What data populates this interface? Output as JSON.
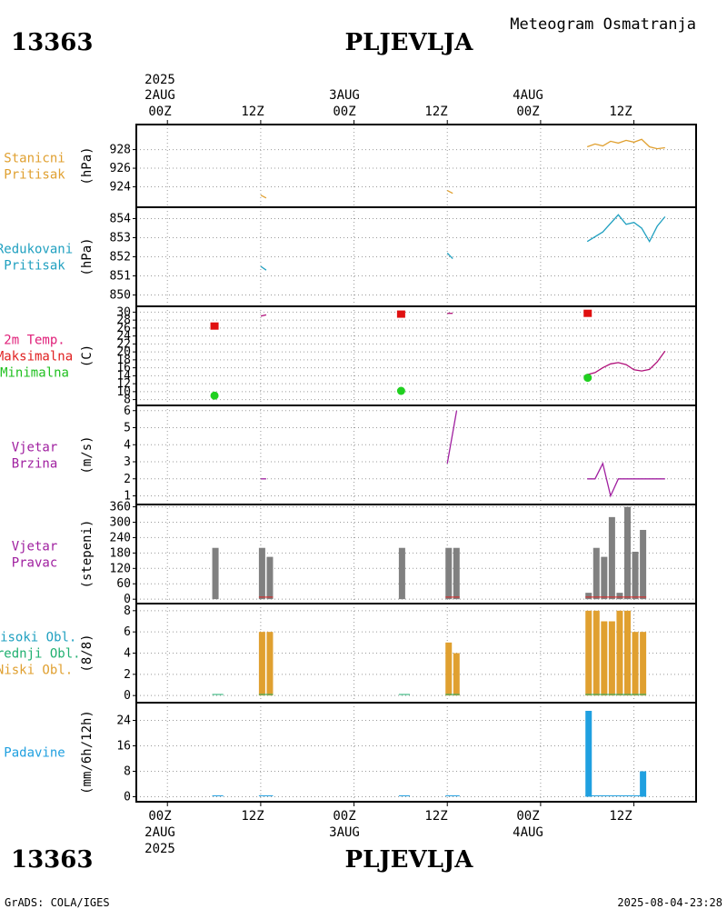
{
  "header": {
    "station_id": "13363",
    "station_name": "PLJEVLJA",
    "title": "Meteogram Osmatranja"
  },
  "footer": {
    "credit": "GrADS: COLA/IGES",
    "timestamp": "2025-08-04-23:28"
  },
  "time_axis": {
    "year": "2025",
    "top": [
      {
        "date": "2AUG",
        "hour": "00Z"
      },
      {
        "date": "",
        "hour": "12Z"
      },
      {
        "date": "3AUG",
        "hour": "00Z"
      },
      {
        "date": "",
        "hour": "12Z"
      },
      {
        "date": "4AUG",
        "hour": "00Z"
      },
      {
        "date": "",
        "hour": "12Z"
      }
    ]
  },
  "chart_data": [
    {
      "type": "line",
      "id": "station-pressure",
      "title_lines": [
        {
          "text": "Stanicni",
          "color": "#e0a030"
        },
        {
          "text": "Pritisak",
          "color": "#e0a030"
        }
      ],
      "ylabel": "(hPa)",
      "ylim": [
        922,
        930.5
      ],
      "yticks": [
        924,
        926,
        928
      ],
      "series": [
        {
          "color": "#e0a030",
          "points": [
            [
              12,
              923.1
            ],
            [
              12.7,
              922.8
            ]
          ]
        },
        {
          "color": "#e0a030",
          "points": [
            [
              36,
              923.6
            ],
            [
              36.7,
              923.3
            ]
          ]
        },
        {
          "color": "#e0a030",
          "points": [
            [
              54,
              928.3
            ],
            [
              55,
              928.6
            ],
            [
              56,
              928.4
            ],
            [
              57,
              928.9
            ],
            [
              58,
              928.7
            ],
            [
              59,
              929.0
            ],
            [
              60,
              928.8
            ],
            [
              61,
              929.1
            ],
            [
              62,
              928.3
            ],
            [
              63,
              928.1
            ],
            [
              64,
              928.2
            ]
          ]
        }
      ]
    },
    {
      "type": "line",
      "id": "reduced-pressure",
      "title_lines": [
        {
          "text": "Redukovani",
          "color": "#20a0c0"
        },
        {
          "text": "Pritisak",
          "color": "#20a0c0"
        }
      ],
      "ylabel": "(hPa)",
      "ylim": [
        849.5,
        854.5
      ],
      "yticks": [
        850,
        851,
        852,
        853,
        854
      ],
      "series": [
        {
          "color": "#20a0c0",
          "points": [
            [
              12,
              851.5
            ],
            [
              12.7,
              851.3
            ]
          ]
        },
        {
          "color": "#20a0c0",
          "points": [
            [
              36,
              852.2
            ],
            [
              36.7,
              851.9
            ]
          ]
        },
        {
          "color": "#20a0c0",
          "points": [
            [
              54,
              852.8
            ],
            [
              56,
              853.3
            ],
            [
              58,
              854.2
            ],
            [
              59,
              853.7
            ],
            [
              60,
              853.8
            ],
            [
              61,
              853.5
            ],
            [
              62,
              852.8
            ],
            [
              63,
              853.6
            ],
            [
              64,
              854.1
            ]
          ]
        }
      ]
    },
    {
      "type": "line",
      "id": "temperature",
      "title_lines": [
        {
          "text": "2m Temp.",
          "color": "#e0207a"
        },
        {
          "text": "Maksimalna",
          "color": "#e02020"
        },
        {
          "text": "Minimalna",
          "color": "#20c020"
        }
      ],
      "ylabel": "(C)",
      "ylim": [
        7,
        31
      ],
      "yticks": [
        8,
        10,
        12,
        14,
        16,
        18,
        20,
        22,
        24,
        26,
        28,
        30
      ],
      "series": [
        {
          "color": "#b0107a",
          "points": [
            [
              12,
              29.0
            ],
            [
              12.7,
              29.3
            ]
          ]
        },
        {
          "color": "#b0107a",
          "points": [
            [
              36,
              29.7
            ],
            [
              36.7,
              29.7
            ]
          ]
        },
        {
          "color": "#b0107a",
          "points": [
            [
              54,
              14.3
            ],
            [
              55,
              14.8
            ],
            [
              56,
              16.0
            ],
            [
              57,
              17.0
            ],
            [
              58,
              17.3
            ],
            [
              59,
              16.8
            ],
            [
              60,
              15.5
            ],
            [
              61,
              15.2
            ],
            [
              62,
              15.6
            ],
            [
              63,
              17.5
            ],
            [
              64,
              20.2
            ]
          ]
        }
      ],
      "max_markers": [
        [
          6,
          26.5
        ],
        [
          30,
          29.5
        ],
        [
          54,
          29.7
        ]
      ],
      "min_markers": [
        [
          6,
          9.0
        ],
        [
          30,
          10.2
        ],
        [
          54,
          13.5
        ]
      ]
    },
    {
      "type": "line",
      "id": "wind-speed",
      "title_lines": [
        {
          "text": "Vjetar",
          "color": "#a020a0"
        },
        {
          "text": "Brzina",
          "color": "#a020a0"
        }
      ],
      "ylabel": "(m/s)",
      "ylim": [
        0.6,
        6.2
      ],
      "yticks": [
        1,
        2,
        3,
        4,
        5,
        6
      ],
      "series": [
        {
          "color": "#a020a0",
          "points": [
            [
              12,
              2.0
            ],
            [
              12.7,
              2.0
            ]
          ]
        },
        {
          "color": "#a020a0",
          "points": [
            [
              36,
              2.9
            ],
            [
              37.2,
              6.0
            ]
          ]
        },
        {
          "color": "#a020a0",
          "points": [
            [
              54,
              2.0
            ],
            [
              55,
              2.0
            ],
            [
              56,
              2.9
            ],
            [
              57,
              1.0
            ],
            [
              58,
              2.0
            ],
            [
              59,
              2.0
            ],
            [
              60,
              2.0
            ],
            [
              61,
              2.0
            ],
            [
              62,
              2.0
            ],
            [
              63,
              2.0
            ],
            [
              64,
              2.0
            ]
          ]
        }
      ]
    },
    {
      "type": "bar",
      "id": "wind-direction",
      "title_lines": [
        {
          "text": "Vjetar",
          "color": "#a020a0"
        },
        {
          "text": "Pravac",
          "color": "#a020a0"
        }
      ],
      "ylabel": "(stepeni)",
      "ylim": [
        -10,
        362
      ],
      "yticks": [
        0,
        60,
        120,
        180,
        240,
        300,
        360
      ],
      "bar_color": "#808080",
      "bars": [
        [
          6,
          200
        ],
        [
          12,
          200
        ],
        [
          13,
          165
        ],
        [
          30,
          200
        ],
        [
          36,
          200
        ],
        [
          37,
          200
        ],
        [
          54,
          25
        ],
        [
          55,
          200
        ],
        [
          56,
          165
        ],
        [
          57,
          320
        ],
        [
          58,
          25
        ],
        [
          59,
          360
        ],
        [
          60,
          185
        ],
        [
          61,
          270
        ]
      ],
      "baseline_segments": [
        {
          "color": "#e02020",
          "value": 8,
          "ranges": [
            [
              12,
              13
            ],
            [
              36,
              37
            ],
            [
              54,
              61
            ]
          ]
        }
      ]
    },
    {
      "type": "bar",
      "id": "cloud-cover",
      "title_lines": [
        {
          "text": "Visoki Obl.",
          "color": "#20a0c0"
        },
        {
          "text": "Srednji Obl.",
          "color": "#20b070"
        },
        {
          "text": "Niski Obl.",
          "color": "#e0a030"
        }
      ],
      "ylabel": "(8/8)",
      "ylim": [
        -0.5,
        8.5
      ],
      "yticks": [
        0,
        2,
        4,
        6,
        8
      ],
      "bar_color": "#e0a030",
      "bars": [
        [
          12,
          6
        ],
        [
          13,
          6
        ],
        [
          36,
          5
        ],
        [
          37,
          4
        ],
        [
          54,
          8
        ],
        [
          55,
          8
        ],
        [
          56,
          7
        ],
        [
          57,
          7
        ],
        [
          58,
          8
        ],
        [
          59,
          8
        ],
        [
          60,
          6
        ],
        [
          61,
          6
        ]
      ],
      "baseline_segments": [
        {
          "color": "#20b070",
          "value": 0.1,
          "ranges": [
            [
              6,
              6.6
            ],
            [
              12,
              13
            ],
            [
              30,
              30.6
            ],
            [
              36,
              37
            ],
            [
              54,
              61
            ]
          ]
        }
      ]
    },
    {
      "type": "bar",
      "id": "precipitation",
      "title_lines": [
        {
          "text": "Padavine",
          "color": "#20a0e0"
        }
      ],
      "ylabel": "(mm/6h/12h)",
      "ylim": [
        -1,
        29
      ],
      "yticks": [
        0,
        8,
        16,
        24
      ],
      "bar_color": "#20a0e0",
      "bars": [
        [
          54,
          27
        ],
        [
          61,
          8
        ]
      ],
      "baseline_segments": [
        {
          "color": "#20a0e0",
          "value": 0.3,
          "ranges": [
            [
              6,
              6.6
            ],
            [
              12,
              13
            ],
            [
              30,
              30.6
            ],
            [
              36,
              37
            ],
            [
              54,
              61
            ]
          ]
        }
      ]
    }
  ]
}
